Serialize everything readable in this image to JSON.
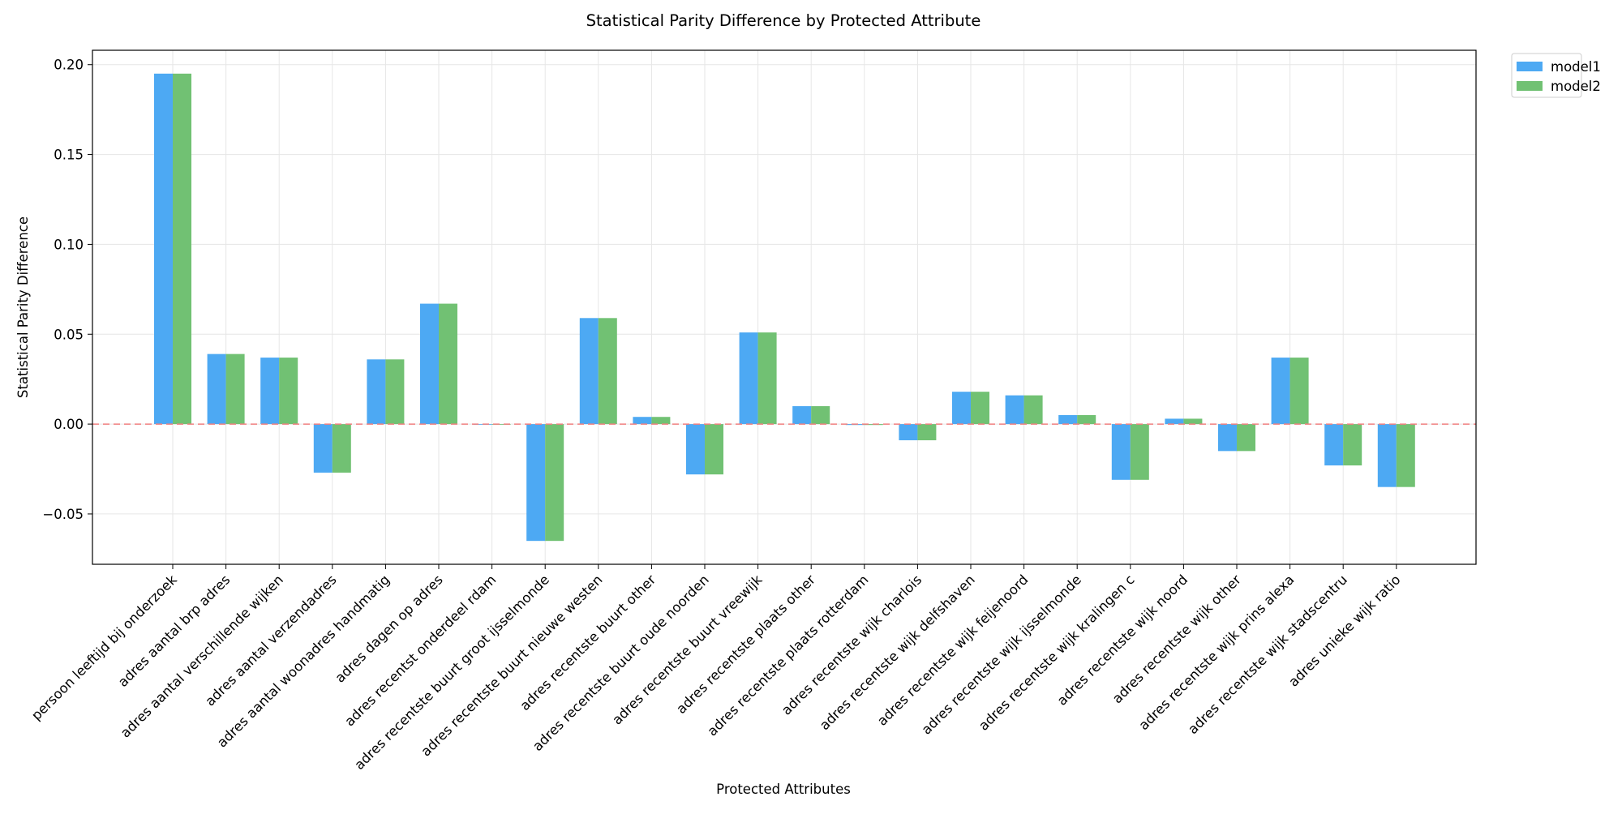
{
  "chart_data": {
    "type": "bar",
    "title": "Statistical Parity Difference by Protected Attribute",
    "xlabel": "Protected Attributes",
    "ylabel": "Statistical Parity Difference",
    "ylim": [
      -0.078,
      0.208
    ],
    "yticks": [
      -0.05,
      0.0,
      0.05,
      0.1,
      0.15,
      0.2
    ],
    "ytick_labels": [
      "−0.05",
      "0.00",
      "0.05",
      "0.10",
      "0.15",
      "0.20"
    ],
    "grid": true,
    "legend_position": "outside-top-right",
    "reference_line": {
      "y": 0,
      "style": "dashed",
      "color": "#f08080"
    },
    "categories": [
      "persoon leeftijd bij onderzoek",
      "adres aantal brp adres",
      "adres aantal verschillende wijken",
      "adres aantal verzendadres",
      "adres aantal woonadres handmatig",
      "adres dagen op adres",
      "adres recentst onderdeel rdam",
      "adres recentste buurt groot ijsselmonde",
      "adres recentste buurt nieuwe westen",
      "adres recentste buurt other",
      "adres recentste buurt oude noorden",
      "adres recentste buurt vreewijk",
      "adres recentste plaats other",
      "adres recentste plaats rotterdam",
      "adres recentste wijk charlois",
      "adres recentste wijk delfshaven",
      "adres recentste wijk feijenoord",
      "adres recentste wijk ijsselmonde",
      "adres recentste wijk kralingen c",
      "adres recentste wijk noord",
      "adres recentste wijk other",
      "adres recentste wijk prins alexa",
      "adres recentste wijk stadscentru",
      "adres unieke wijk ratio"
    ],
    "series": [
      {
        "name": "model1",
        "color": "#4da9f3",
        "values": [
          0.195,
          0.039,
          0.037,
          -0.027,
          0.036,
          0.067,
          0.0,
          -0.065,
          0.059,
          0.004,
          -0.028,
          0.051,
          0.01,
          -0.0005,
          -0.009,
          0.018,
          0.016,
          0.005,
          -0.031,
          0.003,
          -0.015,
          0.037,
          -0.023,
          -0.035
        ]
      },
      {
        "name": "model2",
        "color": "#71c173",
        "values": [
          0.195,
          0.039,
          0.037,
          -0.027,
          0.036,
          0.067,
          0.0,
          -0.065,
          0.059,
          0.004,
          -0.028,
          0.051,
          0.01,
          -0.0005,
          -0.009,
          0.018,
          0.016,
          0.005,
          -0.031,
          0.003,
          -0.015,
          0.037,
          -0.023,
          -0.035
        ]
      }
    ]
  }
}
